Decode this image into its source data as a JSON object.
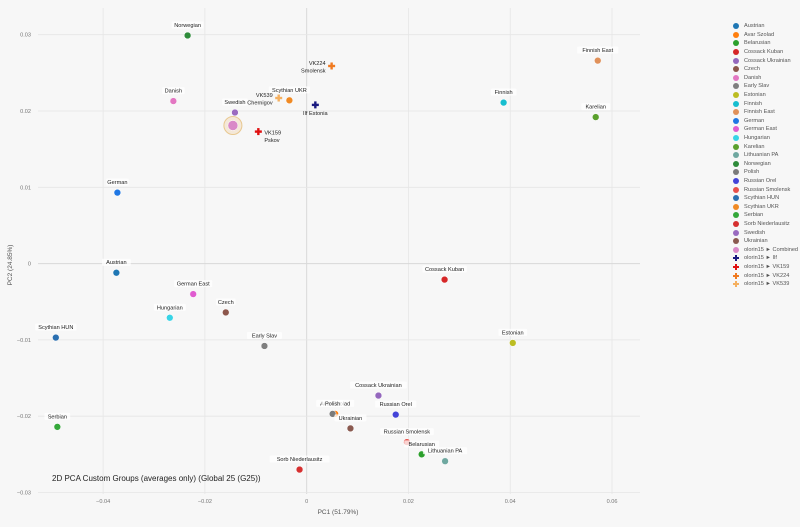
{
  "chart_data": {
    "type": "scatter",
    "title": "2D PCA Custom Groups (averages only) (Global 25 (G25))",
    "xlabel": "PC1 (51.79%)",
    "ylabel": "PC2 (24.85%)",
    "xlim": [
      -0.0528,
      0.0655
    ],
    "ylim": [
      -0.0302,
      0.0335
    ],
    "xticks": [
      -0.04,
      -0.02,
      0,
      0.02,
      0.04,
      0.06
    ],
    "xtick_labels": [
      "−0.04",
      "−0.02",
      "0",
      "0.02",
      "0.04",
      "0.06"
    ],
    "yticks": [
      -0.03,
      -0.02,
      -0.01,
      0,
      0.01,
      0.02,
      0.03
    ],
    "ytick_labels": [
      "−0.03",
      "−0.02",
      "−0.01",
      "0",
      "0.01",
      "0.02",
      "0.03"
    ],
    "points": [
      {
        "name": "Austrian",
        "x": -0.0374,
        "y": -0.0012,
        "color": "#1f77b4",
        "label": "Austrian"
      },
      {
        "name": "Avar Szolad",
        "x": 0.0056,
        "y": -0.0197,
        "color": "#ff7f0e",
        "label": "Avar Szolad"
      },
      {
        "name": "Belarusian",
        "x": 0.0226,
        "y": -0.025,
        "color": "#2ca02c",
        "label": "Belarusian"
      },
      {
        "name": "Cossack Kuban",
        "x": 0.0271,
        "y": -0.0021,
        "color": "#d62728",
        "label": "Cossack Kuban"
      },
      {
        "name": "Cossack Ukrainian",
        "x": 0.0141,
        "y": -0.0173,
        "color": "#9467bd",
        "label": "Cossack Ukrainian"
      },
      {
        "name": "Czech",
        "x": -0.0159,
        "y": -0.0064,
        "color": "#8c564b",
        "label": "Czech"
      },
      {
        "name": "Danish",
        "x": -0.0262,
        "y": 0.0213,
        "color": "#e377c2",
        "label": "Danish"
      },
      {
        "name": "Early Slav",
        "x": -0.0083,
        "y": -0.0108,
        "color": "#7f7f7f",
        "label": "Early Slav"
      },
      {
        "name": "Estonian",
        "x": 0.0405,
        "y": -0.0104,
        "color": "#bcbd22",
        "label": "Estonian"
      },
      {
        "name": "Finnish",
        "x": 0.0387,
        "y": 0.0211,
        "color": "#17becf",
        "label": "Finnish"
      },
      {
        "name": "Finnish East",
        "x": 0.0572,
        "y": 0.0266,
        "color": "#e0915a",
        "label": "Finnish East"
      },
      {
        "name": "German",
        "x": -0.0372,
        "y": 0.0093,
        "color": "#1f77e4",
        "label": "German"
      },
      {
        "name": "German East",
        "x": -0.0223,
        "y": -0.004,
        "color": "#e05cd0",
        "label": "German East"
      },
      {
        "name": "Hungarian",
        "x": -0.0269,
        "y": -0.0071,
        "color": "#38d4e6",
        "label": "Hungarian"
      },
      {
        "name": "Karelian",
        "x": 0.0568,
        "y": 0.0192,
        "color": "#5aa02c",
        "label": "Karelian"
      },
      {
        "name": "Lithuanian PA",
        "x": 0.0272,
        "y": -0.0259,
        "color": "#6fa8a0",
        "label": "Lithuanian PA"
      },
      {
        "name": "Norwegian",
        "x": -0.0234,
        "y": 0.0299,
        "color": "#2e8b3a",
        "label": "Norwegian"
      },
      {
        "name": "Polish",
        "x": 0.0051,
        "y": -0.0197,
        "color": "#7b7b7b",
        "label": "Polish"
      },
      {
        "name": "Russian Orel",
        "x": 0.0175,
        "y": -0.0198,
        "color": "#4444d8",
        "label": "Russian Orel"
      },
      {
        "name": "Russian Smolensk",
        "x": 0.0197,
        "y": -0.0234,
        "color": "#e8504a",
        "label": "Russian Smolensk"
      },
      {
        "name": "Scythian HUN",
        "x": -0.0493,
        "y": -0.0097,
        "color": "#2a6fb0",
        "label": "Scythian HUN"
      },
      {
        "name": "Scythian UKR",
        "x": -0.0034,
        "y": 0.0214,
        "color": "#f08a24",
        "label": "Scythian UKR"
      },
      {
        "name": "Serbian",
        "x": -0.049,
        "y": -0.0214,
        "color": "#34a83a",
        "label": "Serbian"
      },
      {
        "name": "Sorb Niederlausitz",
        "x": -0.0014,
        "y": -0.027,
        "color": "#d63030",
        "label": "Sorb Niederlausitz"
      },
      {
        "name": "Swedish",
        "x": -0.0141,
        "y": 0.0198,
        "color": "#9a6bc0",
        "label": "Swedish"
      },
      {
        "name": "Ukrainian",
        "x": 0.0086,
        "y": -0.0216,
        "color": "#8a5a50",
        "label": "Ukrainian"
      },
      {
        "name": "olorin15 ► Combined",
        "x": -0.0145,
        "y": 0.0181,
        "color": "#d988c8",
        "label": ""
      }
    ],
    "cross_points": [
      {
        "name": "olorin15 ► Ilf",
        "x": 0.0017,
        "y": 0.0208,
        "color": "#1a1a80",
        "label_lines": [
          "Ilf Estonia"
        ]
      },
      {
        "name": "olorin15 ► VK159",
        "x": -0.0095,
        "y": 0.0173,
        "color": "#e01010",
        "label_lines": [
          "VK159",
          "Pskov"
        ]
      },
      {
        "name": "olorin15 ► VK224",
        "x": 0.0049,
        "y": 0.0259,
        "color": "#f07a20",
        "label_lines": [
          "VK224",
          "Smolensk"
        ]
      },
      {
        "name": "olorin15 ► VK539",
        "x": -0.0055,
        "y": 0.0217,
        "color": "#f5b060",
        "label_lines": [
          "VK539",
          "Chernigov"
        ]
      }
    ],
    "legend_position": "right"
  },
  "legend": [
    {
      "label": "Austrian",
      "color": "#1f77b4",
      "marker": "circle"
    },
    {
      "label": "Avar Szolad",
      "color": "#ff7f0e",
      "marker": "circle"
    },
    {
      "label": "Belarusian",
      "color": "#2ca02c",
      "marker": "circle"
    },
    {
      "label": "Cossack Kuban",
      "color": "#d62728",
      "marker": "circle"
    },
    {
      "label": "Cossack Ukrainian",
      "color": "#9467bd",
      "marker": "circle"
    },
    {
      "label": "Czech",
      "color": "#8c564b",
      "marker": "circle"
    },
    {
      "label": "Danish",
      "color": "#e377c2",
      "marker": "circle"
    },
    {
      "label": "Early Slav",
      "color": "#7f7f7f",
      "marker": "circle"
    },
    {
      "label": "Estonian",
      "color": "#bcbd22",
      "marker": "circle"
    },
    {
      "label": "Finnish",
      "color": "#17becf",
      "marker": "circle"
    },
    {
      "label": "Finnish East",
      "color": "#e0915a",
      "marker": "circle"
    },
    {
      "label": "German",
      "color": "#1f77e4",
      "marker": "circle"
    },
    {
      "label": "German East",
      "color": "#e05cd0",
      "marker": "circle"
    },
    {
      "label": "Hungarian",
      "color": "#38d4e6",
      "marker": "circle"
    },
    {
      "label": "Karelian",
      "color": "#5aa02c",
      "marker": "circle"
    },
    {
      "label": "Lithuanian PA",
      "color": "#6fa8a0",
      "marker": "circle"
    },
    {
      "label": "Norwegian",
      "color": "#2e8b3a",
      "marker": "circle"
    },
    {
      "label": "Polish",
      "color": "#7b7b7b",
      "marker": "circle"
    },
    {
      "label": "Russian Orel",
      "color": "#4444d8",
      "marker": "circle"
    },
    {
      "label": "Russian Smolensk",
      "color": "#e8504a",
      "marker": "circle"
    },
    {
      "label": "Scythian HUN",
      "color": "#2a6fb0",
      "marker": "circle"
    },
    {
      "label": "Scythian UKR",
      "color": "#f08a24",
      "marker": "circle"
    },
    {
      "label": "Serbian",
      "color": "#34a83a",
      "marker": "circle"
    },
    {
      "label": "Sorb Niederlausitz",
      "color": "#d63030",
      "marker": "circle"
    },
    {
      "label": "Swedish",
      "color": "#9a6bc0",
      "marker": "circle"
    },
    {
      "label": "Ukrainian",
      "color": "#8a5a50",
      "marker": "circle"
    },
    {
      "label": "olorin15 ► Combined",
      "color": "#d988c8",
      "marker": "circle"
    },
    {
      "label": "olorin15 ► Ilf",
      "color": "#1a1a80",
      "marker": "cross"
    },
    {
      "label": "olorin15 ► VK159",
      "color": "#e01010",
      "marker": "cross"
    },
    {
      "label": "olorin15 ► VK224",
      "color": "#f07a20",
      "marker": "cross"
    },
    {
      "label": "olorin15 ► VK539",
      "color": "#f5b060",
      "marker": "cross"
    }
  ]
}
